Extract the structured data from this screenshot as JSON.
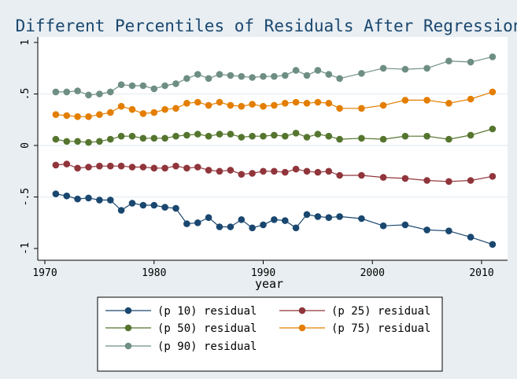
{
  "chart_data": {
    "type": "line",
    "title": "Different Percentiles of Residuals After Regression",
    "xlabel": "year",
    "ylabel": "",
    "xlim": [
      1970,
      2012
    ],
    "ylim": [
      -1.0,
      1.0
    ],
    "xticks": [
      1970,
      1980,
      1990,
      2000,
      2010
    ],
    "yticks": [
      1,
      0.5,
      0,
      -0.5,
      -1
    ],
    "ytick_labels": [
      "1",
      ".5",
      "0",
      "-.5",
      "-1"
    ],
    "grid": "horizontal",
    "legend_position": "bottom",
    "series": [
      {
        "name": "(p 10) residual",
        "color": "#1a476f",
        "x": [
          1971,
          1972,
          1973,
          1974,
          1975,
          1976,
          1977,
          1978,
          1979,
          1980,
          1981,
          1982,
          1983,
          1984,
          1985,
          1986,
          1987,
          1988,
          1989,
          1990,
          1991,
          1992,
          1993,
          1994,
          1995,
          1996,
          1997,
          1999,
          2001,
          2003,
          2005,
          2007,
          2009,
          2011
        ],
        "y": [
          -0.47,
          -0.49,
          -0.52,
          -0.51,
          -0.53,
          -0.53,
          -0.63,
          -0.56,
          -0.58,
          -0.58,
          -0.6,
          -0.61,
          -0.76,
          -0.75,
          -0.7,
          -0.79,
          -0.79,
          -0.72,
          -0.8,
          -0.77,
          -0.72,
          -0.73,
          -0.8,
          -0.67,
          -0.69,
          -0.7,
          -0.69,
          -0.71,
          -0.78,
          -0.77,
          -0.82,
          -0.83,
          -0.89,
          -0.96
        ]
      },
      {
        "name": "(p 25) residual",
        "color": "#90353b",
        "x": [
          1971,
          1972,
          1973,
          1974,
          1975,
          1976,
          1977,
          1978,
          1979,
          1980,
          1981,
          1982,
          1983,
          1984,
          1985,
          1986,
          1987,
          1988,
          1989,
          1990,
          1991,
          1992,
          1993,
          1994,
          1995,
          1996,
          1997,
          1999,
          2001,
          2003,
          2005,
          2007,
          2009,
          2011
        ],
        "y": [
          -0.19,
          -0.18,
          -0.22,
          -0.21,
          -0.2,
          -0.2,
          -0.2,
          -0.21,
          -0.21,
          -0.22,
          -0.22,
          -0.2,
          -0.22,
          -0.21,
          -0.24,
          -0.25,
          -0.24,
          -0.28,
          -0.27,
          -0.25,
          -0.25,
          -0.26,
          -0.23,
          -0.25,
          -0.26,
          -0.25,
          -0.29,
          -0.29,
          -0.31,
          -0.32,
          -0.34,
          -0.35,
          -0.34,
          -0.3
        ]
      },
      {
        "name": "(p 50) residual",
        "color": "#55752f",
        "x": [
          1971,
          1972,
          1973,
          1974,
          1975,
          1976,
          1977,
          1978,
          1979,
          1980,
          1981,
          1982,
          1983,
          1984,
          1985,
          1986,
          1987,
          1988,
          1989,
          1990,
          1991,
          1992,
          1993,
          1994,
          1995,
          1996,
          1997,
          1999,
          2001,
          2003,
          2005,
          2007,
          2009,
          2011
        ],
        "y": [
          0.06,
          0.04,
          0.04,
          0.03,
          0.04,
          0.06,
          0.09,
          0.09,
          0.07,
          0.07,
          0.07,
          0.09,
          0.1,
          0.11,
          0.09,
          0.11,
          0.11,
          0.08,
          0.09,
          0.09,
          0.1,
          0.09,
          0.12,
          0.08,
          0.11,
          0.09,
          0.06,
          0.07,
          0.06,
          0.09,
          0.09,
          0.06,
          0.1,
          0.16
        ]
      },
      {
        "name": "(p 75) residual",
        "color": "#e37e00",
        "x": [
          1971,
          1972,
          1973,
          1974,
          1975,
          1976,
          1977,
          1978,
          1979,
          1980,
          1981,
          1982,
          1983,
          1984,
          1985,
          1986,
          1987,
          1988,
          1989,
          1990,
          1991,
          1992,
          1993,
          1994,
          1995,
          1996,
          1997,
          1999,
          2001,
          2003,
          2005,
          2007,
          2009,
          2011
        ],
        "y": [
          0.3,
          0.29,
          0.28,
          0.28,
          0.3,
          0.32,
          0.38,
          0.35,
          0.31,
          0.32,
          0.35,
          0.36,
          0.41,
          0.42,
          0.39,
          0.42,
          0.39,
          0.38,
          0.4,
          0.38,
          0.39,
          0.41,
          0.42,
          0.41,
          0.42,
          0.41,
          0.36,
          0.36,
          0.39,
          0.44,
          0.44,
          0.41,
          0.45,
          0.52
        ]
      },
      {
        "name": "(p 90) residual",
        "color": "#6e8e84",
        "x": [
          1971,
          1972,
          1973,
          1974,
          1975,
          1976,
          1977,
          1978,
          1979,
          1980,
          1981,
          1982,
          1983,
          1984,
          1985,
          1986,
          1987,
          1988,
          1989,
          1990,
          1991,
          1992,
          1993,
          1994,
          1995,
          1996,
          1997,
          1999,
          2001,
          2003,
          2005,
          2007,
          2009,
          2011
        ],
        "y": [
          0.52,
          0.52,
          0.53,
          0.49,
          0.5,
          0.52,
          0.59,
          0.58,
          0.58,
          0.55,
          0.58,
          0.6,
          0.65,
          0.69,
          0.65,
          0.69,
          0.68,
          0.67,
          0.66,
          0.67,
          0.67,
          0.68,
          0.73,
          0.68,
          0.73,
          0.69,
          0.65,
          0.7,
          0.75,
          0.74,
          0.75,
          0.82,
          0.81,
          0.86
        ]
      }
    ]
  },
  "colors": {
    "background": "#e8eef2",
    "plot_area": "#ffffff",
    "grid": "#e8eef2",
    "title": "#1a476f",
    "axis": "#000000"
  }
}
